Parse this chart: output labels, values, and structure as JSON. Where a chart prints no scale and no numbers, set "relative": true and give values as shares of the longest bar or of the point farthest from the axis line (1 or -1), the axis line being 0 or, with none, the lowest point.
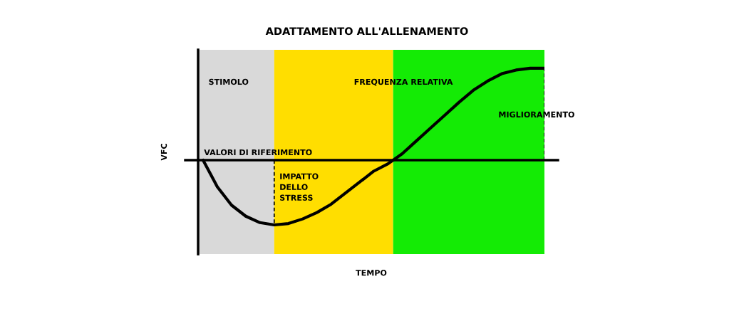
{
  "chart_data": {
    "type": "line",
    "title": "ADATTAMENTO ALL'ALLENAMENTO",
    "ylabel": "VFC",
    "relative": true,
    "tick_labels": false,
    "legend": false,
    "marker": "none",
    "categories": [
      null,
      null,
      null,
      null,
      null,
      null,
      null,
      null,
      null,
      null,
      null,
      null,
      null,
      null,
      null,
      null,
      null,
      null,
      null,
      null,
      null,
      null,
      null,
      null,
      null
    ],
    "series": [
      {
        "color": "#000000",
        "line_style": "solid",
        "values": [
          0,
          -0.29,
          -0.49,
          -0.61,
          -0.68,
          -0.705,
          -0.69,
          -0.64,
          -0.57,
          -0.48,
          -0.36,
          -0.24,
          -0.12,
          -0.04,
          0.07,
          0.21,
          0.35,
          0.49,
          0.63,
          0.76,
          0.86,
          0.94,
          0.98,
          1.0,
          1.0
        ]
      }
    ],
    "ref_lines": [
      {
        "axis": "y",
        "value": 0,
        "color": "#000000",
        "line_style": "solid"
      }
    ],
    "annotations": [
      "STIMOLO",
      "FREQUENZA RELATIVA",
      "MIGLIORAMENTO",
      "VALORI DI RIFERIMENTO",
      "IMPATTO\nDELLO\nSTRESS",
      "TEMPO"
    ]
  }
}
